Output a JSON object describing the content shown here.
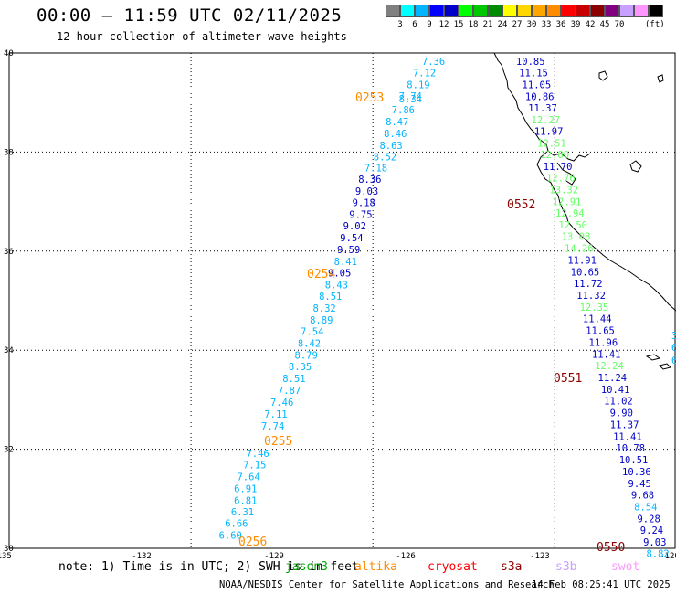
{
  "header": {
    "title": "00:00 – 11:59 UTC 02/11/2025",
    "subtitle": "12 hour collection of altimeter wave heights"
  },
  "scale": {
    "colors": [
      "#808080",
      "#00ffff",
      "#00b4ff",
      "#0000ff",
      "#0000c8",
      "#00ff00",
      "#00c800",
      "#008c00",
      "#ffff00",
      "#ffd700",
      "#ffa500",
      "#ff8c00",
      "#ff0000",
      "#c80000",
      "#8b0000",
      "#800080",
      "#c8a0ff",
      "#ff96ff",
      "#000000"
    ],
    "labels": [
      "3",
      "6",
      "9",
      "12",
      "15",
      "18",
      "21",
      "24",
      "27",
      "30",
      "33",
      "36",
      "39",
      "42",
      "45",
      "70"
    ],
    "unit": "(ft)"
  },
  "axes": {
    "x_ticks": [
      "-135",
      "-132",
      "-129",
      "-126",
      "-123",
      "-120"
    ],
    "y_ticks": [
      "40",
      "38",
      "36",
      "34",
      "32",
      "30"
    ]
  },
  "chart_data": {
    "type": "scatter",
    "xlim": [
      -135,
      -124
    ],
    "ylim": [
      30,
      40
    ],
    "tracks": [
      {
        "label": "0253",
        "label_color": "#ff8c00",
        "points": [
          {
            "lon": -128.0,
            "lat": 39.83,
            "v": "7.36",
            "c": "#00b4ff"
          },
          {
            "lon": -128.15,
            "lat": 39.6,
            "v": "7.12",
            "c": "#00b4ff"
          },
          {
            "lon": -128.25,
            "lat": 39.36,
            "v": "8.19",
            "c": "#00b4ff"
          },
          {
            "lon": -128.38,
            "lat": 39.13,
            "v": "7.74",
            "c": "#00b4ff"
          },
          {
            "lon": -128.38,
            "lat": 39.08,
            "v": "8.34",
            "c": "#00b4ff"
          },
          {
            "lon": -128.5,
            "lat": 38.86,
            "v": "7.86",
            "c": "#00b4ff"
          },
          {
            "lon": -128.6,
            "lat": 38.62,
            "v": "8.47",
            "c": "#00b4ff"
          },
          {
            "lon": -128.63,
            "lat": 38.38,
            "v": "8.46",
            "c": "#00b4ff"
          },
          {
            "lon": -128.7,
            "lat": 38.14,
            "v": "8.63",
            "c": "#00b4ff"
          },
          {
            "lon": -128.8,
            "lat": 37.91,
            "v": "8.52",
            "c": "#00b4ff"
          },
          {
            "lon": -128.95,
            "lat": 37.68,
            "v": "7.18",
            "c": "#00b4ff"
          },
          {
            "lon": -129.05,
            "lat": 37.45,
            "v": "8.36",
            "c": "#0000c8"
          },
          {
            "lon": -129.1,
            "lat": 37.21,
            "v": "9.03",
            "c": "#0000c8"
          },
          {
            "lon": -129.15,
            "lat": 36.98,
            "v": "9.18",
            "c": "#0000c8"
          },
          {
            "lon": -129.2,
            "lat": 36.74,
            "v": "9.75",
            "c": "#0000c8"
          },
          {
            "lon": -129.3,
            "lat": 36.51,
            "v": "9.02",
            "c": "#0000c8"
          },
          {
            "lon": -129.35,
            "lat": 36.27,
            "v": "9.54",
            "c": "#0000c8"
          },
          {
            "lon": -129.4,
            "lat": 36.03,
            "v": "9.59",
            "c": "#0000c8"
          }
        ]
      },
      {
        "label": "0254",
        "label_color": "#ff8c00",
        "points": [
          {
            "lon": -129.45,
            "lat": 35.79,
            "v": "8.41",
            "c": "#00b4ff"
          },
          {
            "lon": -129.55,
            "lat": 35.56,
            "v": "9.05",
            "c": "#0000c8"
          },
          {
            "lon": -129.6,
            "lat": 35.32,
            "v": "8.43",
            "c": "#00b4ff"
          },
          {
            "lon": -129.7,
            "lat": 35.09,
            "v": "8.51",
            "c": "#00b4ff"
          },
          {
            "lon": -129.8,
            "lat": 34.85,
            "v": "8.32",
            "c": "#00b4ff"
          },
          {
            "lon": -129.85,
            "lat": 34.61,
            "v": "8.89",
            "c": "#00b4ff"
          },
          {
            "lon": -130.0,
            "lat": 34.38,
            "v": "7.54",
            "c": "#00b4ff"
          },
          {
            "lon": -130.05,
            "lat": 34.14,
            "v": "8.42",
            "c": "#00b4ff"
          },
          {
            "lon": -130.1,
            "lat": 33.9,
            "v": "8.79",
            "c": "#00b4ff"
          },
          {
            "lon": -130.2,
            "lat": 33.67,
            "v": "8.35",
            "c": "#00b4ff"
          },
          {
            "lon": -130.3,
            "lat": 33.43,
            "v": "8.51",
            "c": "#00b4ff"
          },
          {
            "lon": -130.38,
            "lat": 33.19,
            "v": "7.87",
            "c": "#00b4ff"
          },
          {
            "lon": -130.5,
            "lat": 32.95,
            "v": "7.46",
            "c": "#00b4ff"
          },
          {
            "lon": -130.6,
            "lat": 32.71,
            "v": "7.11",
            "c": "#00b4ff"
          },
          {
            "lon": -130.65,
            "lat": 32.47,
            "v": "7.74",
            "c": "#00b4ff"
          }
        ]
      },
      {
        "label": "0255",
        "label_color": "#ff8c00",
        "points": [
          {
            "lon": -130.9,
            "lat": 31.92,
            "v": "7.46",
            "c": "#00b4ff"
          },
          {
            "lon": -130.95,
            "lat": 31.69,
            "v": "7.15",
            "c": "#00b4ff"
          },
          {
            "lon": -131.05,
            "lat": 31.45,
            "v": "7.64",
            "c": "#00b4ff"
          },
          {
            "lon": -131.1,
            "lat": 31.21,
            "v": "6.91",
            "c": "#00b4ff"
          },
          {
            "lon": -131.1,
            "lat": 30.97,
            "v": "6.81",
            "c": "#00b4ff"
          },
          {
            "lon": -131.15,
            "lat": 30.74,
            "v": "6.31",
            "c": "#00b4ff"
          },
          {
            "lon": -131.25,
            "lat": 30.51,
            "v": "6.66",
            "c": "#00b4ff"
          },
          {
            "lon": -131.35,
            "lat": 30.27,
            "v": "6.60",
            "c": "#00b4ff"
          }
        ]
      },
      {
        "label": "0256",
        "label_color": "#ff8c00",
        "points": []
      },
      {
        "label": "0552",
        "label_color": "#8b0000",
        "points": [
          {
            "lon": -126.4,
            "lat": 39.83,
            "v": "10.85",
            "c": "#0000c8"
          },
          {
            "lon": -126.35,
            "lat": 39.6,
            "v": "11.15",
            "c": "#0000c8"
          },
          {
            "lon": -126.3,
            "lat": 39.36,
            "v": "11.05",
            "c": "#0000c8"
          },
          {
            "lon": -126.25,
            "lat": 39.12,
            "v": "10.86",
            "c": "#0000c8"
          },
          {
            "lon": -126.2,
            "lat": 38.89,
            "v": "11.37",
            "c": "#0000c8"
          },
          {
            "lon": -126.15,
            "lat": 38.65,
            "v": "12.27",
            "c": "#64ff64"
          },
          {
            "lon": -126.1,
            "lat": 38.42,
            "v": "11.97",
            "c": "#0000c8"
          },
          {
            "lon": -126.05,
            "lat": 38.18,
            "v": "12.51",
            "c": "#64ff64"
          },
          {
            "lon": -126.0,
            "lat": 37.95,
            "v": "12.80",
            "c": "#64ff64"
          },
          {
            "lon": -125.95,
            "lat": 37.71,
            "v": "11.70",
            "c": "#0000c8"
          },
          {
            "lon": -125.9,
            "lat": 37.48,
            "v": "12.76",
            "c": "#64ff64"
          },
          {
            "lon": -125.85,
            "lat": 37.24,
            "v": "13.32",
            "c": "#64ff64"
          },
          {
            "lon": -125.8,
            "lat": 37.0,
            "v": "12.91",
            "c": "#64ff64"
          },
          {
            "lon": -125.75,
            "lat": 36.77,
            "v": "12.94",
            "c": "#64ff64"
          },
          {
            "lon": -125.7,
            "lat": 36.53,
            "v": "12.50",
            "c": "#64ff64"
          },
          {
            "lon": -125.65,
            "lat": 36.3,
            "v": "13.08",
            "c": "#64ff64"
          },
          {
            "lon": -125.6,
            "lat": 36.06,
            "v": "14.26",
            "c": "#64ff64"
          }
        ]
      },
      {
        "label": "0551",
        "label_color": "#8b0000",
        "points": [
          {
            "lon": -125.55,
            "lat": 35.82,
            "v": "11.91",
            "c": "#0000c8"
          },
          {
            "lon": -125.5,
            "lat": 35.58,
            "v": "10.65",
            "c": "#0000c8"
          },
          {
            "lon": -125.45,
            "lat": 35.35,
            "v": "11.72",
            "c": "#0000c8"
          },
          {
            "lon": -125.4,
            "lat": 35.11,
            "v": "11.32",
            "c": "#0000c8"
          },
          {
            "lon": -125.35,
            "lat": 34.87,
            "v": "12.35",
            "c": "#64ff64"
          },
          {
            "lon": -125.3,
            "lat": 34.64,
            "v": "11.44",
            "c": "#0000c8"
          },
          {
            "lon": -125.25,
            "lat": 34.4,
            "v": "11.65",
            "c": "#0000c8"
          },
          {
            "lon": -125.2,
            "lat": 34.16,
            "v": "11.96",
            "c": "#0000c8"
          },
          {
            "lon": -125.15,
            "lat": 33.92,
            "v": "11.41",
            "c": "#0000c8"
          },
          {
            "lon": -125.1,
            "lat": 33.69,
            "v": "12.24",
            "c": "#64ff64"
          },
          {
            "lon": -125.05,
            "lat": 33.45,
            "v": "11.24",
            "c": "#0000c8"
          },
          {
            "lon": -125.0,
            "lat": 33.21,
            "v": "10.41",
            "c": "#0000c8"
          },
          {
            "lon": -124.95,
            "lat": 32.98,
            "v": "11.02",
            "c": "#0000c8"
          },
          {
            "lon": -124.9,
            "lat": 32.74,
            "v": "9.90",
            "c": "#0000c8"
          },
          {
            "lon": -124.85,
            "lat": 32.5,
            "v": "11.37",
            "c": "#0000c8"
          },
          {
            "lon": -124.8,
            "lat": 32.26,
            "v": "11.41",
            "c": "#0000c8"
          }
        ]
      },
      {
        "label": "0550",
        "label_color": "#8b0000",
        "points": [
          {
            "lon": -124.75,
            "lat": 32.03,
            "v": "10.78",
            "c": "#0000c8"
          },
          {
            "lon": -124.7,
            "lat": 31.79,
            "v": "10.51",
            "c": "#0000c8"
          },
          {
            "lon": -124.65,
            "lat": 31.55,
            "v": "10.36",
            "c": "#0000c8"
          },
          {
            "lon": -124.6,
            "lat": 31.31,
            "v": "9.45",
            "c": "#0000c8"
          },
          {
            "lon": -124.55,
            "lat": 31.08,
            "v": "9.68",
            "c": "#0000c8"
          },
          {
            "lon": -124.5,
            "lat": 30.84,
            "v": "8.54",
            "c": "#00b4ff"
          },
          {
            "lon": -124.45,
            "lat": 30.6,
            "v": "9.28",
            "c": "#0000c8"
          },
          {
            "lon": -124.4,
            "lat": 30.37,
            "v": "9.24",
            "c": "#0000c8"
          },
          {
            "lon": -124.35,
            "lat": 30.13,
            "v": "9.03",
            "c": "#0000c8"
          },
          {
            "lon": -124.3,
            "lat": 29.9,
            "v": "8.82",
            "c": "#00b4ff"
          }
        ]
      }
    ],
    "edge_values": [
      {
        "v": "3",
        "c": "#00b4ff"
      },
      {
        "v": "6",
        "c": "#00b4ff"
      },
      {
        "v": "6",
        "c": "#00b4ff"
      }
    ]
  },
  "notes": {
    "note_text": "note: 1) Time is in UTC; 2) SWH is in feet",
    "legend": [
      {
        "name": "jason3",
        "color": "#00aa00"
      },
      {
        "name": "altika",
        "color": "#ff8c00"
      },
      {
        "name": "cryosat",
        "color": "#ff0000"
      },
      {
        "name": "s3a",
        "color": "#8b0000"
      },
      {
        "name": "s3b",
        "color": "#c8a0ff"
      },
      {
        "name": "swot",
        "color": "#ff96ff"
      }
    ]
  },
  "footer": {
    "credit": "NOAA/NESDIS Center for Satellite Applications and Research",
    "timestamp": "14 Feb 08:25:41 UTC 2025"
  }
}
